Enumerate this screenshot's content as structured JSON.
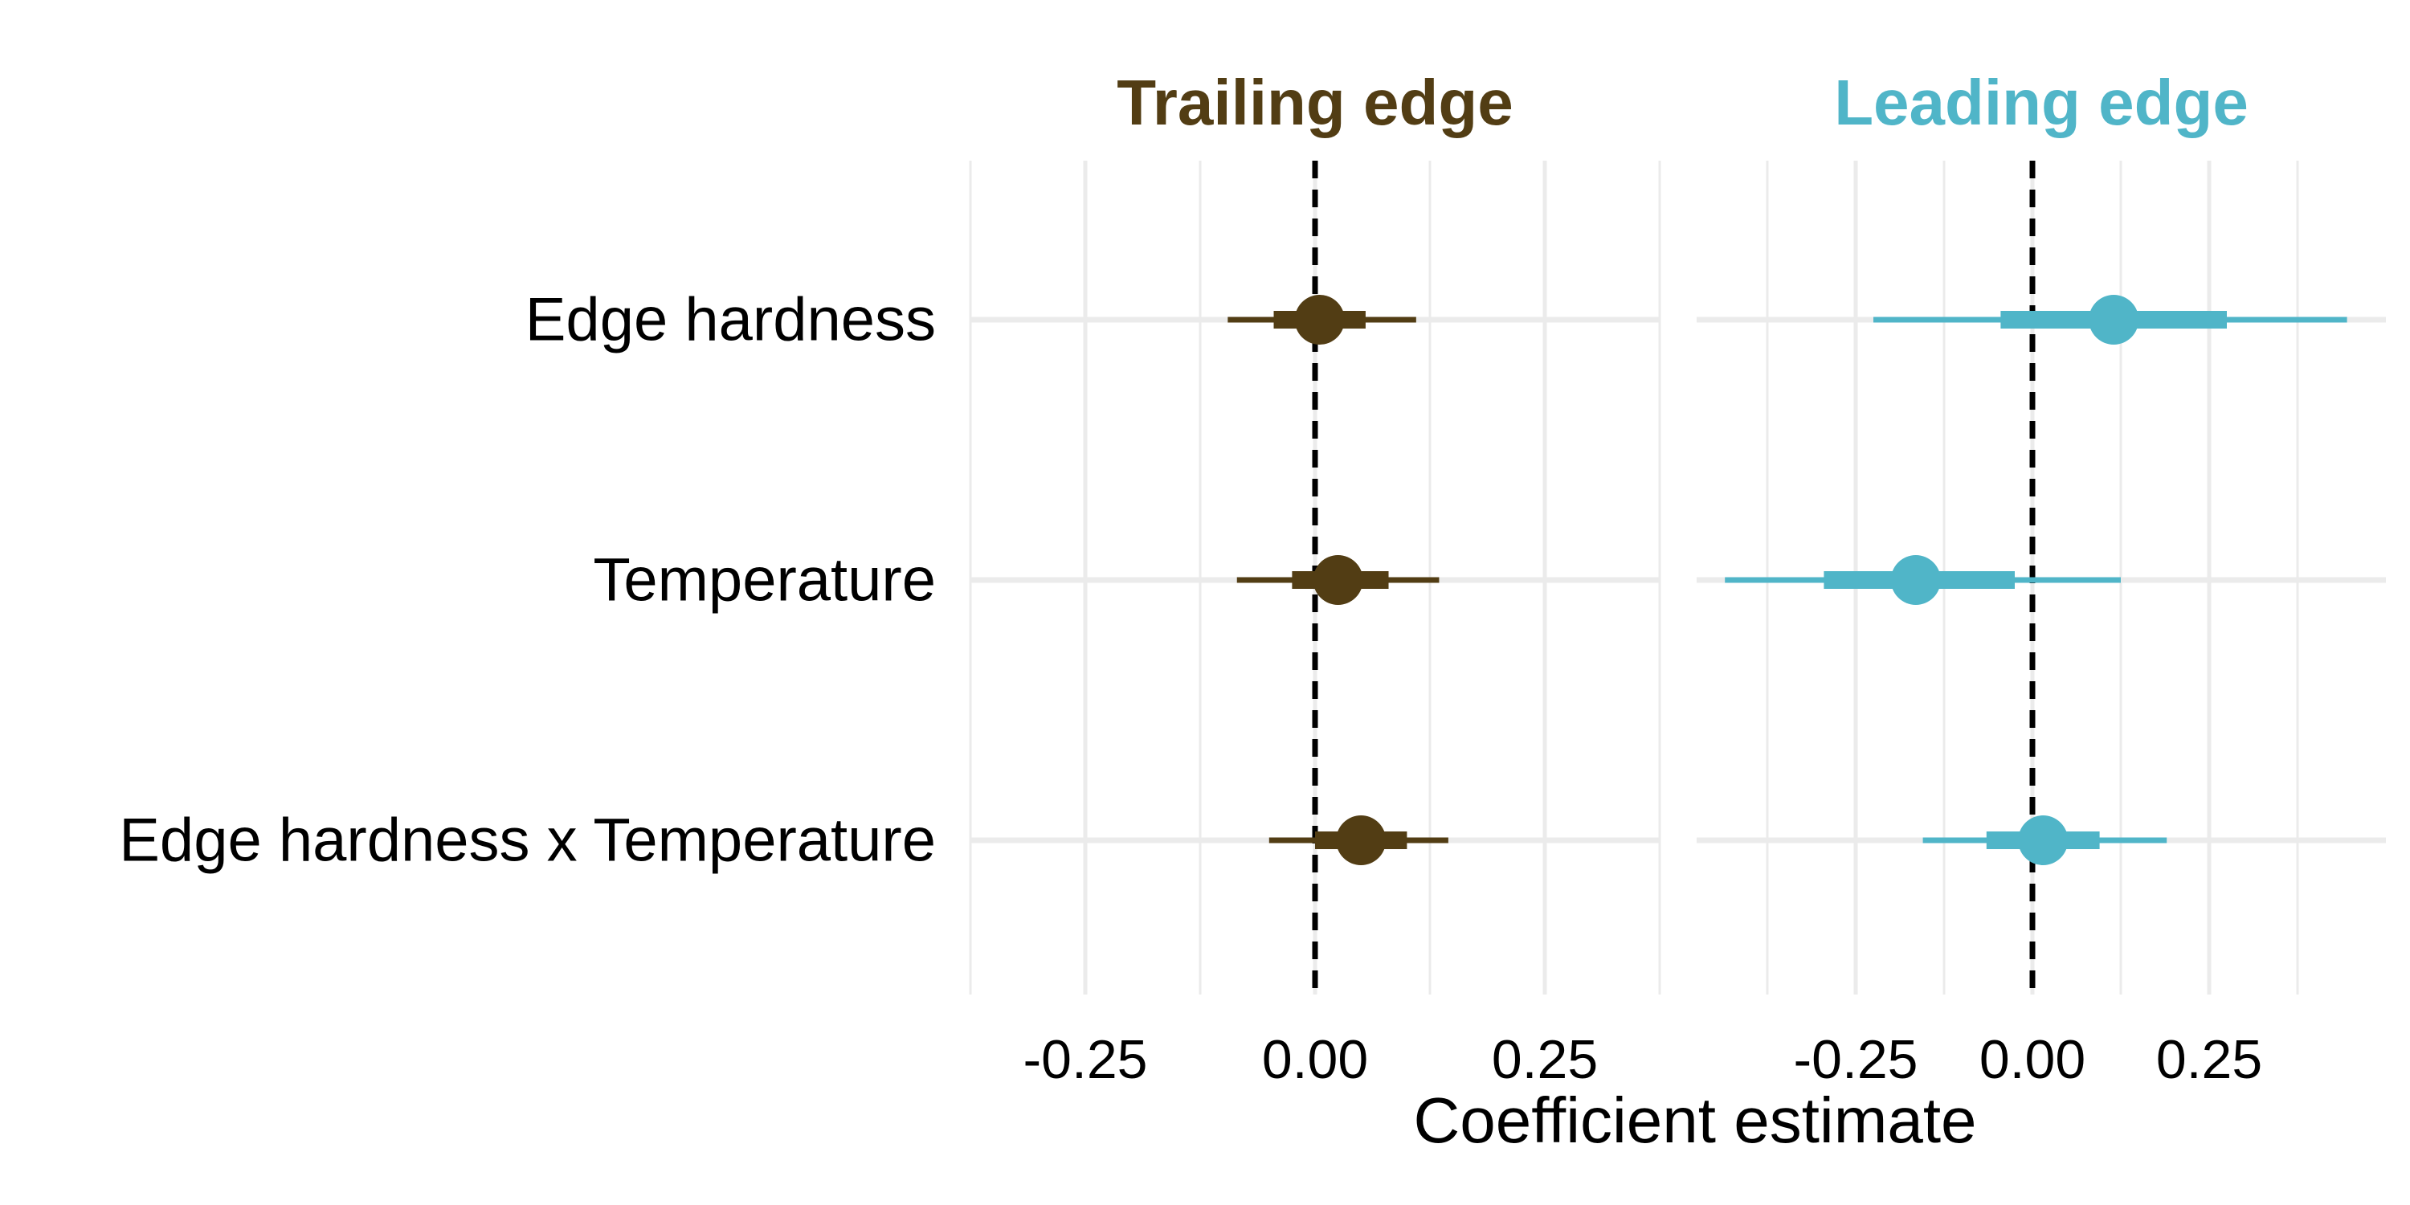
{
  "chart_data": {
    "type": "forest",
    "xlabel": "Coefficient estimate",
    "categories": [
      "Edge hardness",
      "Temperature",
      "Edge hardness x Temperature"
    ],
    "xlim": [
      -0.375,
      0.375
    ],
    "xticks": [
      -0.25,
      0,
      0.25
    ],
    "xtick_labels": [
      "-0.25",
      "0.00",
      "0.25"
    ],
    "grid": true,
    "reference_line": 0,
    "panels": [
      {
        "title": "Trailing edge",
        "color": "#523D14",
        "xlim": [
          -0.375,
          0.375
        ],
        "series": [
          {
            "category": "Edge hardness",
            "estimate": 0.005,
            "inner": [
              -0.045,
              0.055
            ],
            "outer": [
              -0.095,
              0.11
            ]
          },
          {
            "category": "Temperature",
            "estimate": 0.025,
            "inner": [
              -0.025,
              0.08
            ],
            "outer": [
              -0.085,
              0.135
            ]
          },
          {
            "category": "Edge hardness x Temperature",
            "estimate": 0.05,
            "inner": [
              0.0,
              0.1
            ],
            "outer": [
              -0.05,
              0.145
            ]
          }
        ]
      },
      {
        "title": "Leading edge",
        "color": "#50B5C8",
        "xlim": [
          -0.475,
          0.5
        ],
        "series": [
          {
            "category": "Edge hardness",
            "estimate": 0.115,
            "inner": [
              -0.045,
              0.275
            ],
            "outer": [
              -0.225,
              0.445
            ]
          },
          {
            "category": "Temperature",
            "estimate": -0.165,
            "inner": [
              -0.295,
              -0.025
            ],
            "outer": [
              -0.435,
              0.125
            ]
          },
          {
            "category": "Edge hardness x Temperature",
            "estimate": 0.015,
            "inner": [
              -0.065,
              0.095
            ],
            "outer": [
              -0.155,
              0.19
            ]
          }
        ]
      }
    ]
  }
}
